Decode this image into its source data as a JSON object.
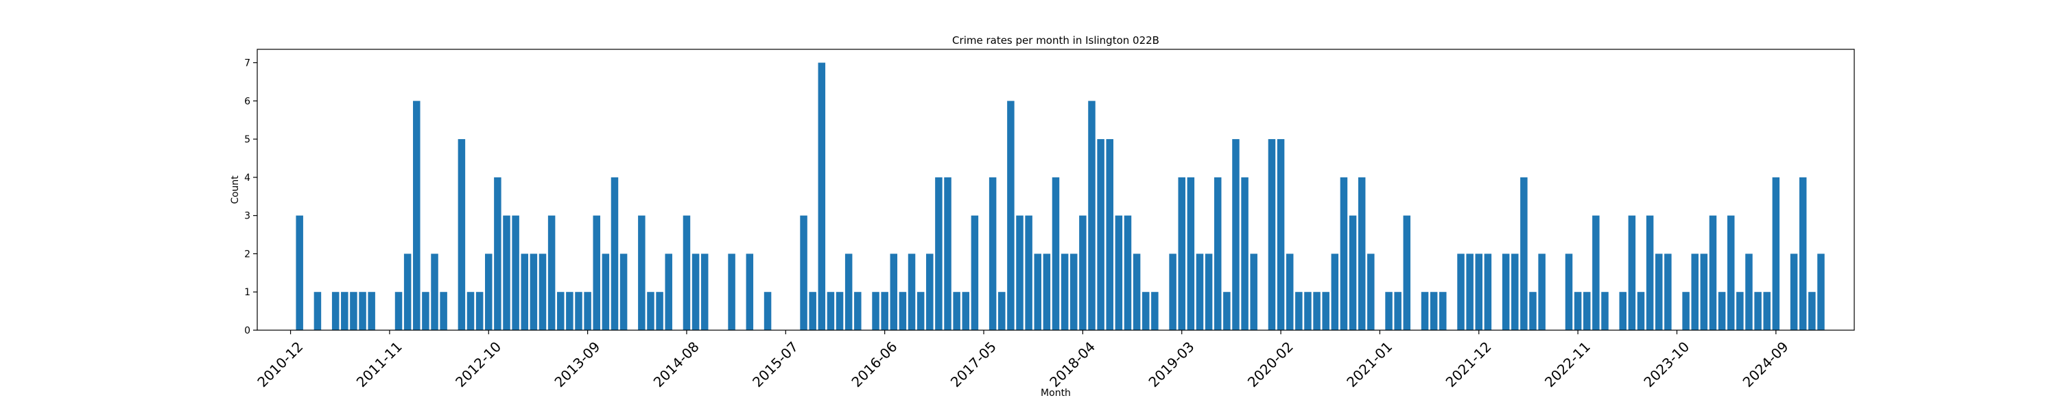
{
  "chart_data": {
    "type": "bar",
    "title": "Crime rates per month in Islington 022B",
    "xlabel": "Month",
    "ylabel": "Count",
    "ylim": [
      0,
      7.35
    ],
    "yticks": [
      0,
      1,
      2,
      3,
      4,
      5,
      6,
      7
    ],
    "color": "#1f77b4",
    "grid": false,
    "tick_labels": [
      "2010-12",
      "2011-11",
      "2012-10",
      "2013-09",
      "2014-08",
      "2015-07",
      "2016-06",
      "2017-05",
      "2018-04",
      "2019-03",
      "2020-02",
      "2021-01",
      "2021-12",
      "2022-11",
      "2023-10",
      "2024-09"
    ],
    "categories": [
      "2010-12",
      "2011-01",
      "2011-02",
      "2011-03",
      "2011-04",
      "2011-05",
      "2011-06",
      "2011-07",
      "2011-08",
      "2011-09",
      "2011-10",
      "2011-11",
      "2011-12",
      "2012-01",
      "2012-02",
      "2012-03",
      "2012-04",
      "2012-05",
      "2012-06",
      "2012-07",
      "2012-08",
      "2012-09",
      "2012-10",
      "2012-11",
      "2012-12",
      "2013-01",
      "2013-02",
      "2013-03",
      "2013-04",
      "2013-05",
      "2013-06",
      "2013-07",
      "2013-08",
      "2013-09",
      "2013-10",
      "2013-11",
      "2013-12",
      "2014-01",
      "2014-02",
      "2014-03",
      "2014-04",
      "2014-05",
      "2014-06",
      "2014-07",
      "2014-08",
      "2014-09",
      "2014-10",
      "2014-11",
      "2014-12",
      "2015-01",
      "2015-02",
      "2015-03",
      "2015-04",
      "2015-05",
      "2015-06",
      "2015-07",
      "2015-08",
      "2015-09",
      "2015-10",
      "2015-11",
      "2015-12",
      "2016-01",
      "2016-02",
      "2016-03",
      "2016-04",
      "2016-05",
      "2016-06",
      "2016-07",
      "2016-08",
      "2016-09",
      "2016-10",
      "2016-11",
      "2016-12",
      "2017-01",
      "2017-02",
      "2017-03",
      "2017-04",
      "2017-05",
      "2017-06",
      "2017-07",
      "2017-08",
      "2017-09",
      "2017-10",
      "2017-11",
      "2017-12",
      "2018-01",
      "2018-02",
      "2018-03",
      "2018-04",
      "2018-05",
      "2018-06",
      "2018-07",
      "2018-08",
      "2018-09",
      "2018-10",
      "2018-11",
      "2018-12",
      "2019-01",
      "2019-02",
      "2019-03",
      "2019-04",
      "2019-05",
      "2019-06",
      "2019-07",
      "2019-08",
      "2019-09",
      "2019-10",
      "2019-11",
      "2019-12",
      "2020-01",
      "2020-02",
      "2020-03",
      "2020-04",
      "2020-05",
      "2020-06",
      "2020-07",
      "2020-08",
      "2020-09",
      "2020-10",
      "2020-11",
      "2020-12",
      "2021-01",
      "2021-02",
      "2021-03",
      "2021-04",
      "2021-05",
      "2021-06",
      "2021-07",
      "2021-08",
      "2021-09",
      "2021-10",
      "2021-11",
      "2021-12",
      "2022-01",
      "2022-02",
      "2022-03",
      "2022-04",
      "2022-05",
      "2022-06",
      "2022-07",
      "2022-08",
      "2022-09",
      "2022-10",
      "2022-11",
      "2022-12",
      "2023-01",
      "2023-02",
      "2023-03",
      "2023-04",
      "2023-05",
      "2023-06",
      "2023-07",
      "2023-08",
      "2023-09",
      "2023-10",
      "2023-11",
      "2023-12",
      "2024-01",
      "2024-02",
      "2024-03",
      "2024-04",
      "2024-05",
      "2024-06",
      "2024-07",
      "2024-08",
      "2024-09",
      "2024-10",
      "2024-11",
      "2024-12",
      "2025-01",
      "2025-02"
    ],
    "values": [
      0,
      3,
      0,
      1,
      0,
      1,
      1,
      1,
      1,
      1,
      0,
      0,
      1,
      2,
      6,
      1,
      2,
      1,
      0,
      5,
      1,
      1,
      2,
      4,
      3,
      3,
      2,
      2,
      2,
      3,
      1,
      1,
      1,
      1,
      3,
      2,
      4,
      2,
      0,
      3,
      1,
      1,
      2,
      0,
      3,
      2,
      2,
      0,
      0,
      2,
      0,
      2,
      0,
      1,
      0,
      0,
      0,
      3,
      1,
      7,
      1,
      1,
      2,
      1,
      0,
      1,
      1,
      2,
      1,
      2,
      1,
      2,
      4,
      4,
      1,
      1,
      3,
      0,
      4,
      1,
      6,
      3,
      3,
      2,
      2,
      4,
      2,
      2,
      3,
      6,
      5,
      5,
      3,
      3,
      2,
      1,
      1,
      0,
      2,
      4,
      4,
      2,
      2,
      4,
      1,
      5,
      4,
      2,
      0,
      5,
      5,
      2,
      1,
      1,
      1,
      1,
      2,
      4,
      3,
      4,
      2,
      0,
      1,
      1,
      3,
      0,
      1,
      1,
      1,
      0,
      2,
      2,
      2,
      2,
      0,
      2,
      2,
      4,
      1,
      2,
      0,
      0,
      2,
      1,
      1,
      3,
      1,
      0,
      1,
      3,
      1,
      3,
      2,
      2,
      0,
      1,
      2,
      2,
      3,
      1,
      3,
      1,
      2,
      1,
      1,
      4,
      0,
      2,
      4,
      1,
      2
    ]
  }
}
